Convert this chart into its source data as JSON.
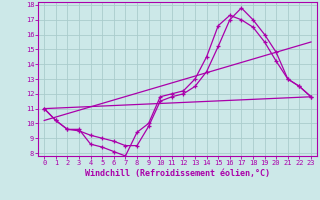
{
  "xlabel": "Windchill (Refroidissement éolien,°C)",
  "bg_color": "#cce8e8",
  "line_color": "#aa00aa",
  "grid_color": "#aacccc",
  "xlim": [
    -0.5,
    23.5
  ],
  "ylim": [
    7.8,
    18.2
  ],
  "xticks": [
    0,
    1,
    2,
    3,
    4,
    5,
    6,
    7,
    8,
    9,
    10,
    11,
    12,
    13,
    14,
    15,
    16,
    17,
    18,
    19,
    20,
    21,
    22,
    23
  ],
  "yticks": [
    8,
    9,
    10,
    11,
    12,
    13,
    14,
    15,
    16,
    17,
    18
  ],
  "line1_x": [
    0,
    1,
    2,
    3,
    4,
    5,
    6,
    7,
    8,
    9,
    10,
    11,
    12,
    13,
    14,
    15,
    16,
    17,
    18,
    19,
    20,
    21,
    22,
    23
  ],
  "line1_y": [
    11.0,
    10.2,
    9.6,
    9.6,
    8.6,
    8.4,
    8.1,
    7.8,
    9.4,
    10.0,
    11.8,
    12.0,
    12.2,
    13.0,
    14.5,
    16.6,
    17.3,
    17.0,
    16.5,
    15.5,
    14.2,
    13.0,
    12.5,
    11.8
  ],
  "line2_x": [
    0,
    1,
    2,
    3,
    4,
    5,
    6,
    7,
    8,
    9,
    10,
    11,
    12,
    13,
    14,
    15,
    16,
    17,
    18,
    19,
    20,
    21,
    22,
    23
  ],
  "line2_y": [
    11.0,
    10.2,
    9.6,
    9.5,
    9.2,
    9.0,
    8.8,
    8.5,
    8.5,
    9.8,
    11.5,
    11.8,
    12.0,
    12.5,
    13.5,
    15.2,
    17.0,
    17.8,
    17.0,
    16.0,
    14.8,
    13.0,
    12.5,
    11.8
  ],
  "line3_x": [
    0,
    23
  ],
  "line3_y": [
    11.0,
    11.8
  ],
  "line4_x": [
    0,
    23
  ],
  "line4_y": [
    10.2,
    15.5
  ],
  "tick_fontsize": 5.0,
  "xlabel_fontsize": 6.0
}
